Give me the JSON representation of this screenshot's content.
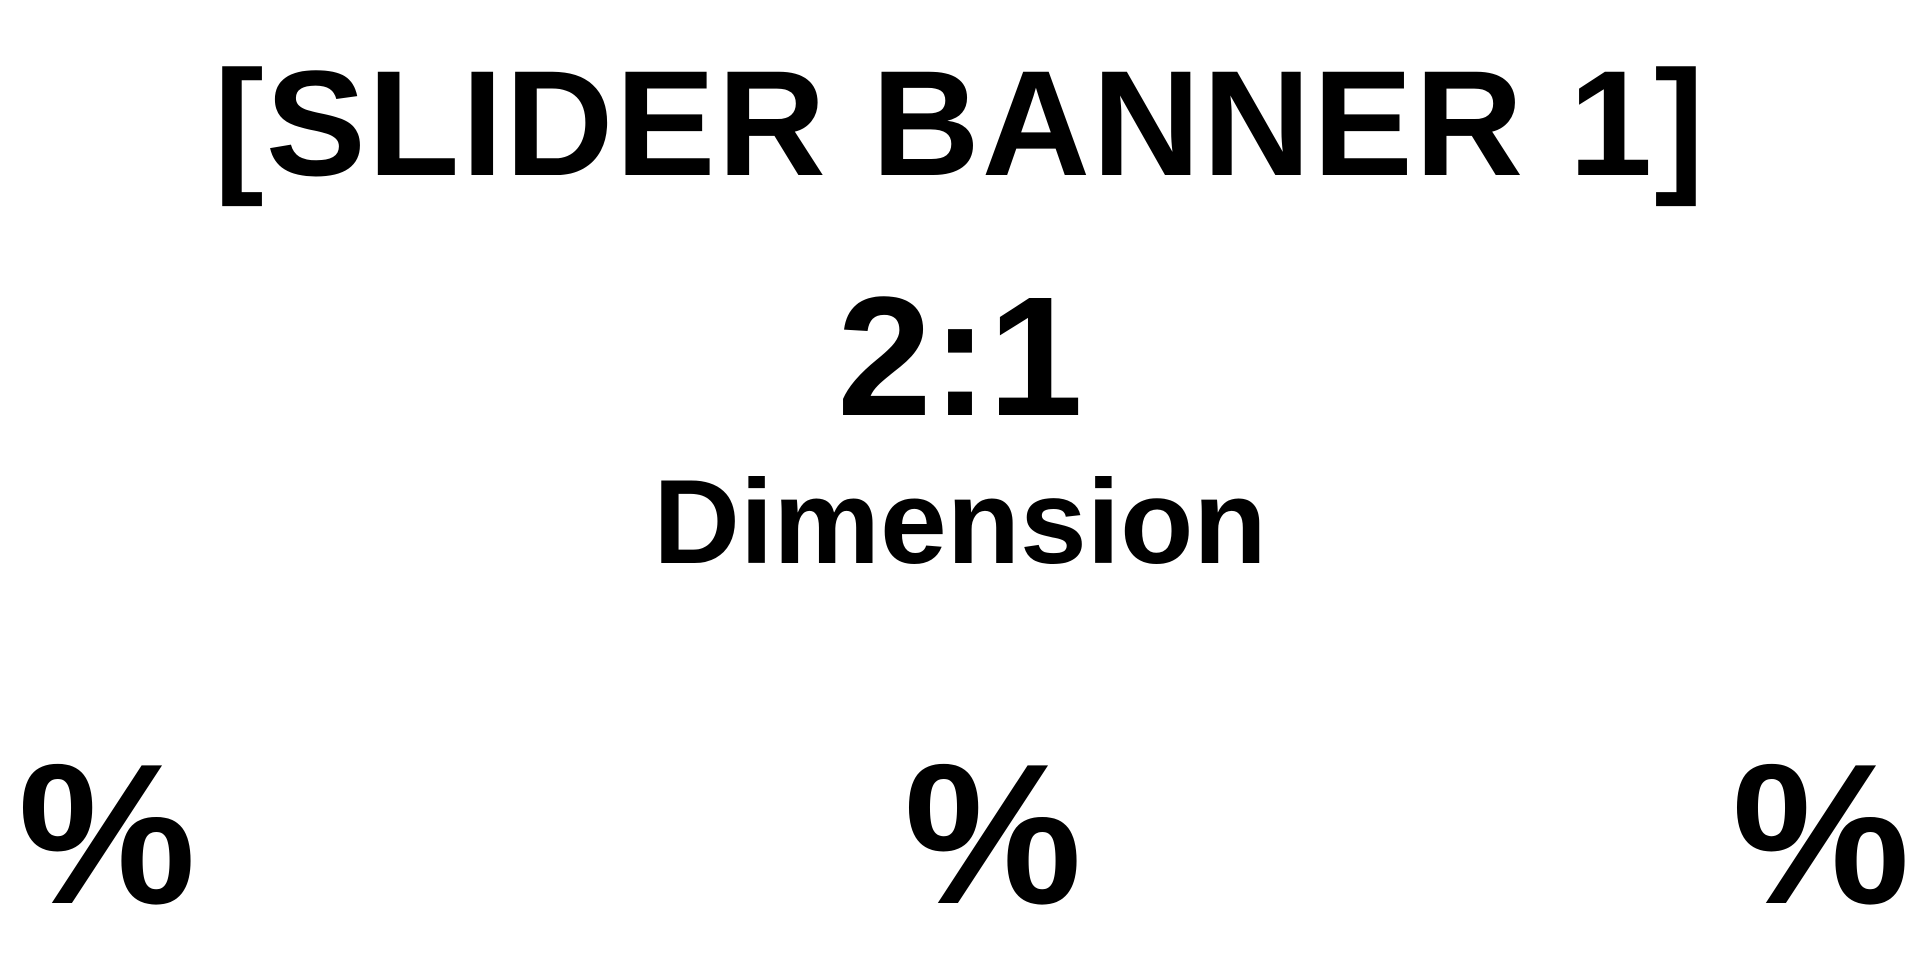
{
  "banner": {
    "title": "[SLIDER BANNER 1]",
    "ratio": "2:1",
    "subtitle": "Dimension"
  },
  "percent_markers": [
    "%",
    "%",
    "%"
  ],
  "colors": {
    "background": "#ffffff",
    "text": "#000000"
  }
}
